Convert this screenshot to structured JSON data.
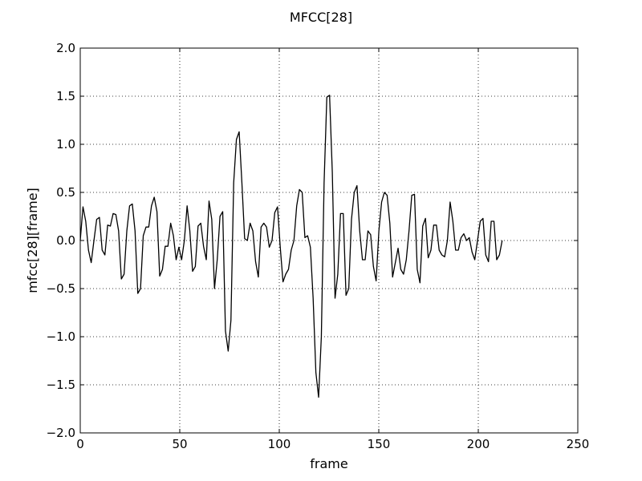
{
  "chart_data": {
    "type": "line",
    "title": "MFCC[28]",
    "xlabel": "frame",
    "ylabel": "mfcc[28][frame]",
    "xlim": [
      0,
      250
    ],
    "ylim": [
      -2.0,
      2.0
    ],
    "xticks": [
      0,
      50,
      100,
      150,
      200,
      250
    ],
    "xtick_labels": [
      "0",
      "50",
      "100",
      "150",
      "200",
      "250"
    ],
    "yticks": [
      2.0,
      1.5,
      1.0,
      0.5,
      0.0,
      -0.5,
      -1.0,
      -1.5,
      -2.0
    ],
    "ytick_labels": [
      "2.0",
      "1.5",
      "1.0",
      "0.5",
      "0.0",
      "−0.5",
      "−1.0",
      "−1.5",
      "−2.0"
    ],
    "grid": true,
    "line_color": "#000000",
    "series": [
      {
        "values": [
          0.0,
          0.35,
          0.2,
          -0.1,
          -0.23,
          0.0,
          0.22,
          0.24,
          -0.1,
          -0.15,
          0.16,
          0.15,
          0.28,
          0.27,
          0.1,
          -0.4,
          -0.35,
          0.1,
          0.36,
          0.38,
          0.1,
          -0.55,
          -0.5,
          0.05,
          0.14,
          0.14,
          0.36,
          0.45,
          0.3,
          -0.37,
          -0.3,
          -0.06,
          -0.06,
          0.18,
          0.05,
          -0.2,
          -0.07,
          -0.2,
          0.0,
          0.36,
          0.1,
          -0.32,
          -0.27,
          0.15,
          0.18,
          -0.06,
          -0.2,
          0.41,
          0.22,
          -0.5,
          -0.2,
          0.25,
          0.3,
          -0.94,
          -1.15,
          -0.83,
          0.6,
          1.05,
          1.13,
          0.6,
          0.02,
          0.0,
          0.18,
          0.1,
          -0.22,
          -0.38,
          0.14,
          0.18,
          0.14,
          -0.07,
          0.0,
          0.29,
          0.35,
          -0.07,
          -0.43,
          -0.35,
          -0.3,
          -0.1,
          0.0,
          0.36,
          0.53,
          0.5,
          0.03,
          0.05,
          -0.07,
          -0.6,
          -1.37,
          -1.63,
          -1.0,
          0.6,
          1.49,
          1.51,
          0.71,
          -0.6,
          -0.35,
          0.28,
          0.28,
          -0.57,
          -0.5,
          0.22,
          0.5,
          0.57,
          0.1,
          -0.2,
          -0.2,
          0.1,
          0.06,
          -0.27,
          -0.42,
          0.1,
          0.4,
          0.5,
          0.47,
          0.18,
          -0.38,
          -0.23,
          -0.08,
          -0.3,
          -0.35,
          -0.2,
          0.1,
          0.47,
          0.48,
          -0.3,
          -0.44,
          0.15,
          0.23,
          -0.18,
          -0.1,
          0.16,
          0.16,
          -0.1,
          -0.15,
          -0.17,
          0.0,
          0.4,
          0.2,
          -0.1,
          -0.1,
          0.03,
          0.07,
          0.0,
          0.03,
          -0.12,
          -0.2,
          0.0,
          0.2,
          0.23,
          -0.15,
          -0.22,
          0.2,
          0.2,
          -0.2,
          -0.15,
          0.0
        ]
      }
    ]
  }
}
